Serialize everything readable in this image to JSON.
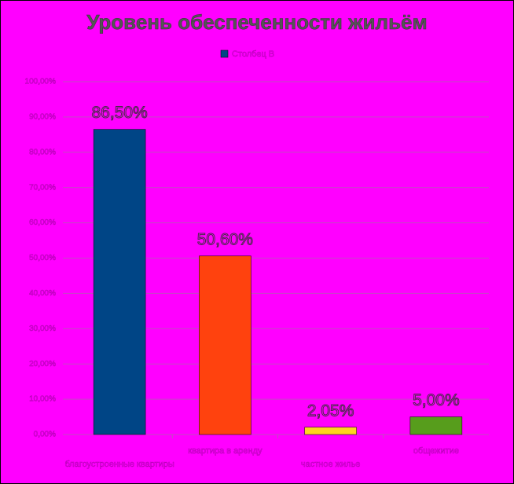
{
  "chart_data": {
    "type": "bar",
    "title": "Уровень обеспеченности жильём",
    "categories": [
      "благоустроенные квартиры",
      "квартира в аренду",
      "частное жилье",
      "общежитие"
    ],
    "series": [
      {
        "name": "Столбец B",
        "color": "#004586",
        "values": [
          86.5,
          50.6,
          2.05,
          5.0
        ],
        "value_labels": [
          "86,50%",
          "50,60%",
          "2,05%",
          "5,00%"
        ]
      }
    ],
    "colors": [
      "#004586",
      "#ff420e",
      "#ffd320",
      "#579d1c"
    ],
    "ylim": [
      0,
      100
    ],
    "yticks": [
      {
        "value": 0,
        "label": "0,00%"
      },
      {
        "value": 10,
        "label": "10,00%"
      },
      {
        "value": 20,
        "label": "20,00%"
      },
      {
        "value": 30,
        "label": "30,00%"
      },
      {
        "value": 40,
        "label": "40,00%"
      },
      {
        "value": 50,
        "label": "50,00%"
      },
      {
        "value": 60,
        "label": "60,00%"
      },
      {
        "value": 70,
        "label": "70,00%"
      },
      {
        "value": 80,
        "label": "80,00%"
      },
      {
        "value": 90,
        "label": "90,00%"
      },
      {
        "value": 100,
        "label": "100,00%"
      }
    ],
    "grid": true,
    "legend": "top"
  }
}
